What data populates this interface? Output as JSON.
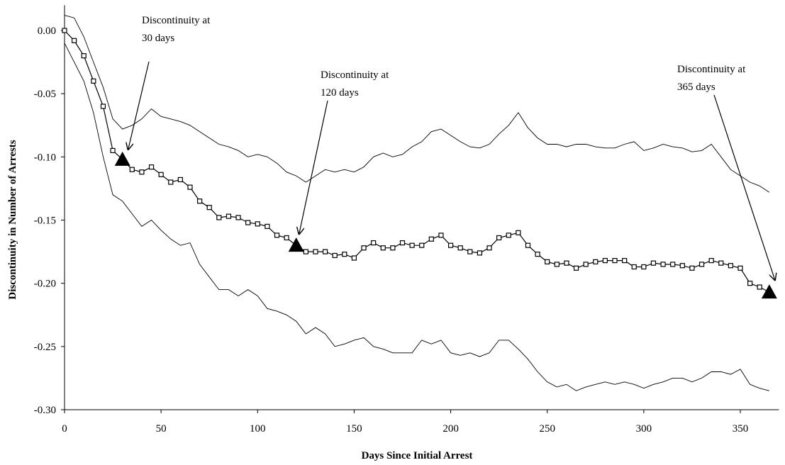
{
  "chart_data": {
    "type": "line",
    "x_label": "Days Since Initial Arrest",
    "y_label": "Discontinuity in Number of Arrests",
    "xlim": [
      0,
      370
    ],
    "xticks": [
      0,
      50,
      100,
      150,
      200,
      250,
      300,
      350
    ],
    "ylim": [
      -0.3,
      0.02
    ],
    "yticks": [
      {
        "value": 0,
        "label": "0.00"
      },
      -0.05,
      {
        "value": -0.1,
        "label": "-0.10"
      },
      -0.15,
      {
        "value": -0.2,
        "label": "-0.20"
      },
      -0.25,
      {
        "value": -0.3,
        "label": "-0.30"
      }
    ],
    "x": [
      0,
      5,
      10,
      15,
      20,
      25,
      30,
      35,
      40,
      45,
      50,
      55,
      60,
      65,
      70,
      75,
      80,
      85,
      90,
      95,
      100,
      105,
      110,
      115,
      120,
      125,
      130,
      135,
      140,
      145,
      150,
      155,
      160,
      165,
      170,
      175,
      180,
      185,
      190,
      195,
      200,
      205,
      210,
      215,
      220,
      225,
      230,
      235,
      240,
      245,
      250,
      255,
      260,
      265,
      270,
      275,
      280,
      285,
      290,
      295,
      300,
      305,
      310,
      315,
      320,
      325,
      330,
      335,
      340,
      345,
      350,
      355,
      360,
      365
    ],
    "series": [
      {
        "color": "#000000",
        "marker": "none",
        "values": [
          0.012,
          0.01,
          -0.005,
          -0.025,
          -0.045,
          -0.07,
          -0.078,
          -0.075,
          -0.07,
          -0.062,
          -0.068,
          -0.07,
          -0.072,
          -0.075,
          -0.08,
          -0.085,
          -0.09,
          -0.092,
          -0.095,
          -0.1,
          -0.098,
          -0.1,
          -0.105,
          -0.112,
          -0.115,
          -0.12,
          -0.115,
          -0.11,
          -0.112,
          -0.11,
          -0.112,
          -0.108,
          -0.1,
          -0.097,
          -0.1,
          -0.098,
          -0.092,
          -0.088,
          -0.08,
          -0.078,
          -0.083,
          -0.088,
          -0.092,
          -0.093,
          -0.09,
          -0.082,
          -0.075,
          -0.065,
          -0.077,
          -0.085,
          -0.09,
          -0.09,
          -0.092,
          -0.09,
          -0.09,
          -0.092,
          -0.093,
          -0.093,
          -0.09,
          -0.088,
          -0.095,
          -0.093,
          -0.09,
          -0.092,
          -0.093,
          -0.096,
          -0.095,
          -0.09,
          -0.1,
          -0.11,
          -0.115,
          -0.12,
          -0.123,
          -0.128
        ]
      },
      {
        "color": "#000000",
        "marker": "none",
        "values": [
          -0.01,
          -0.025,
          -0.04,
          -0.065,
          -0.1,
          -0.13,
          -0.135,
          -0.145,
          -0.155,
          -0.15,
          -0.158,
          -0.165,
          -0.17,
          -0.168,
          -0.185,
          -0.195,
          -0.205,
          -0.205,
          -0.21,
          -0.205,
          -0.21,
          -0.22,
          -0.222,
          -0.225,
          -0.23,
          -0.24,
          -0.235,
          -0.24,
          -0.25,
          -0.248,
          -0.245,
          -0.243,
          -0.25,
          -0.252,
          -0.255,
          -0.255,
          -0.255,
          -0.245,
          -0.248,
          -0.245,
          -0.255,
          -0.257,
          -0.255,
          -0.258,
          -0.255,
          -0.245,
          -0.245,
          -0.252,
          -0.26,
          -0.27,
          -0.278,
          -0.282,
          -0.28,
          -0.285,
          -0.282,
          -0.28,
          -0.278,
          -0.28,
          -0.278,
          -0.28,
          -0.283,
          -0.28,
          -0.278,
          -0.275,
          -0.275,
          -0.278,
          -0.275,
          -0.27,
          -0.27,
          -0.272,
          -0.268,
          -0.28,
          -0.283,
          -0.285
        ]
      },
      {
        "color": "#000000",
        "marker": "square",
        "values": [
          0,
          -0.008,
          -0.02,
          -0.04,
          -0.06,
          -0.095,
          -0.102,
          -0.11,
          -0.112,
          -0.108,
          -0.114,
          -0.12,
          -0.118,
          -0.124,
          -0.135,
          -0.14,
          -0.148,
          -0.147,
          -0.148,
          -0.152,
          -0.153,
          -0.155,
          -0.162,
          -0.164,
          -0.17,
          -0.175,
          -0.175,
          -0.175,
          -0.178,
          -0.177,
          -0.18,
          -0.172,
          -0.168,
          -0.172,
          -0.172,
          -0.168,
          -0.17,
          -0.17,
          -0.165,
          -0.162,
          -0.17,
          -0.172,
          -0.175,
          -0.176,
          -0.172,
          -0.164,
          -0.162,
          -0.16,
          -0.17,
          -0.177,
          -0.183,
          -0.185,
          -0.184,
          -0.188,
          -0.185,
          -0.183,
          -0.182,
          -0.182,
          -0.182,
          -0.187,
          -0.187,
          -0.184,
          -0.185,
          -0.185,
          -0.186,
          -0.188,
          -0.185,
          -0.182,
          -0.184,
          -0.186,
          -0.188,
          -0.2,
          -0.203,
          -0.207
        ]
      },
      {
        "color": "#000000",
        "marker": "triangle",
        "x": [
          30,
          120,
          365
        ],
        "values": [
          -0.102,
          -0.17,
          -0.207
        ]
      }
    ],
    "annotations": [
      {
        "lines": [
          "Discontinuity at",
          "30 days"
        ],
        "point": 0
      },
      {
        "lines": [
          "Discontinuity at",
          "120 days"
        ],
        "point": 1
      },
      {
        "lines": [
          "Discontinuity at",
          "365 days"
        ],
        "point": 2
      }
    ]
  }
}
